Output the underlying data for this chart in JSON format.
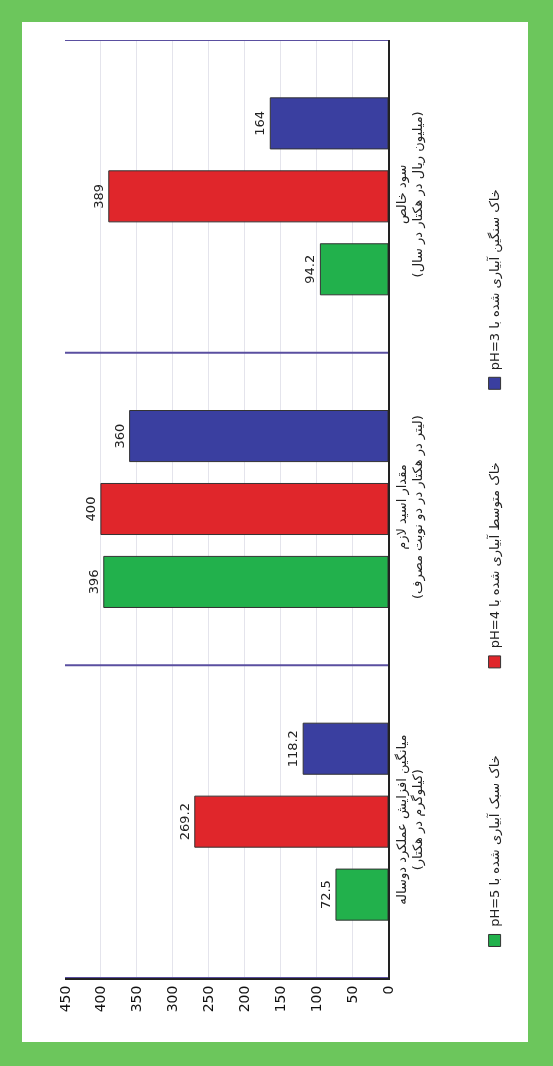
{
  "chart_data": {
    "type": "bar",
    "orientation": "horizontal",
    "categories": [
      "سود خالص\n(میلیون ریال در هکتار در سال)",
      "مقدار اسید لازم\n(لیتر در هکتار در دو نوبت مصرف)",
      "میانگین افزایش عملکرد دوساله\n(کیلوگرم در هکتار)"
    ],
    "series": [
      {
        "name": "خاک سبک آبیاری شده با pH=5",
        "color": "#22b14c",
        "values": [
          94.2,
          396,
          72.5
        ]
      },
      {
        "name": "خاک متوسط آبیاری شده با pH=4",
        "color": "#e0262b",
        "values": [
          389,
          400,
          269.2
        ]
      },
      {
        "name": "خاک سنگین آبیاری شده با pH=3",
        "color": "#3a3fa0",
        "values": [
          164,
          360,
          118.2
        ]
      }
    ],
    "xlim": [
      450,
      0
    ],
    "xticks": [
      0,
      50,
      100,
      150,
      200,
      250,
      300,
      350,
      400,
      450
    ],
    "grid": true,
    "legend": "right",
    "data_labels": true
  }
}
